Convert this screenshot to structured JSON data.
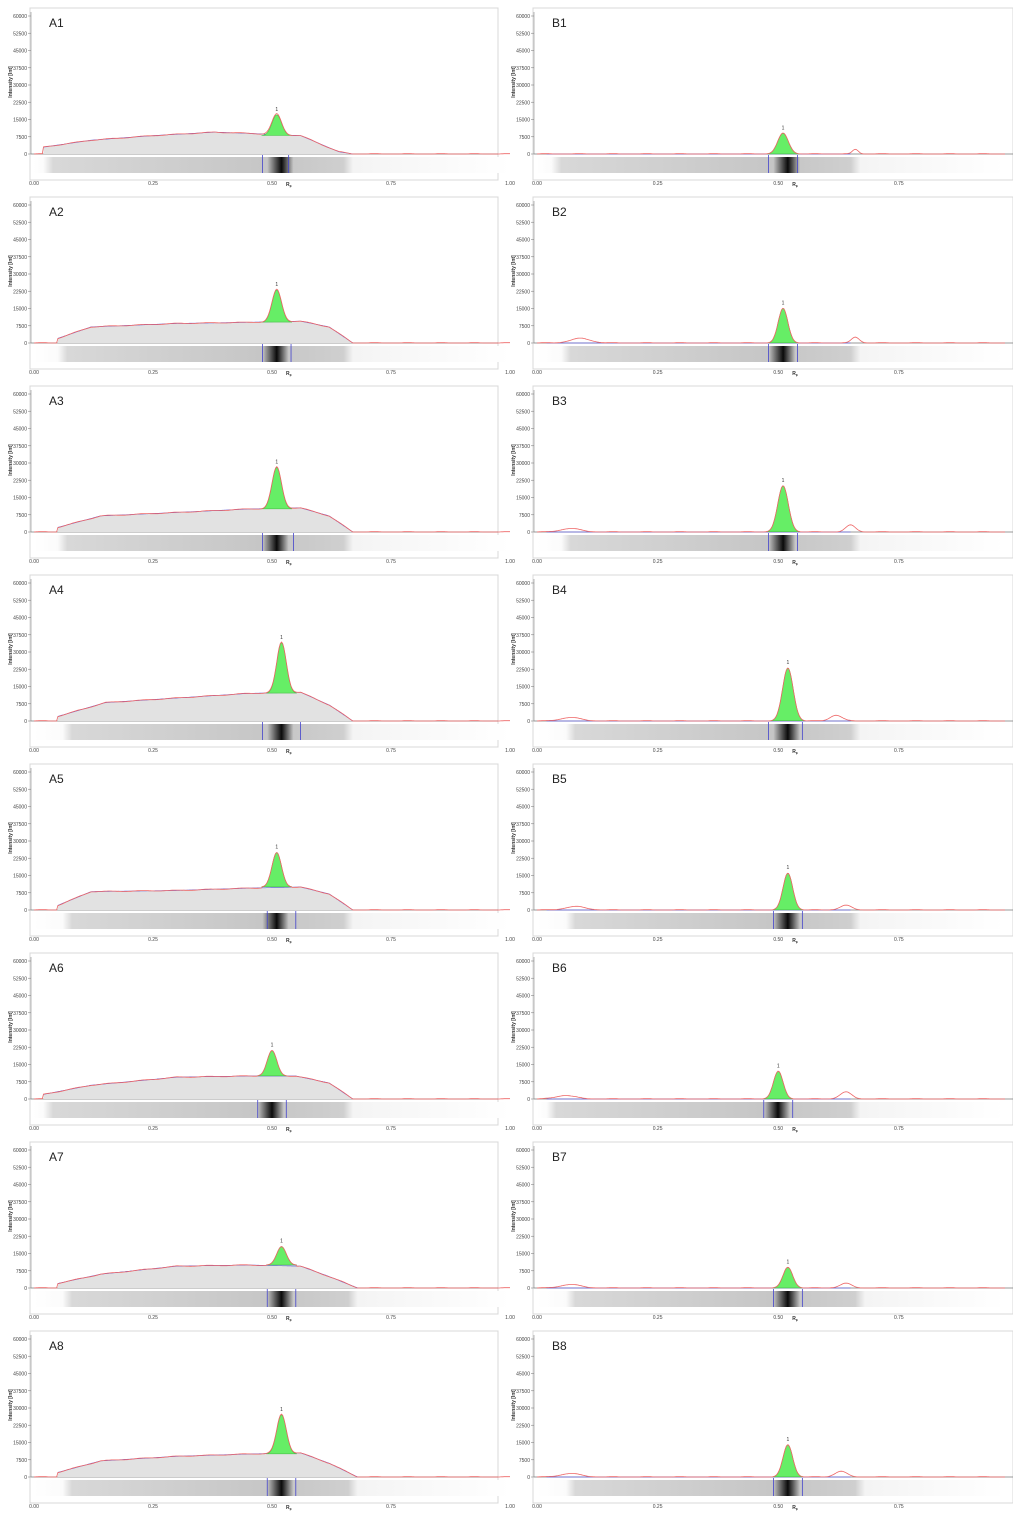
{
  "chart_data": [
    {
      "type": "area",
      "label": "A1",
      "peak": {
        "label": "1",
        "rf": 0.51,
        "height": 17000,
        "base": 8000,
        "sigma": 0.01
      },
      "background": [
        [
          0.02,
          3000
        ],
        [
          0.12,
          6000
        ],
        [
          0.25,
          8000
        ],
        [
          0.38,
          9500
        ],
        [
          0.45,
          9000
        ],
        [
          0.5,
          8500
        ],
        [
          0.56,
          8000
        ],
        [
          0.64,
          1000
        ],
        [
          0.67,
          0
        ]
      ],
      "bands": [
        0.48,
        0.535
      ],
      "strip": [
        0.02,
        0.67
      ],
      "dark": 0.52
    },
    {
      "type": "area",
      "label": "B1",
      "peak": {
        "label": "1",
        "rf": 0.51,
        "height": 9000,
        "base": 0,
        "sigma": 0.011
      },
      "background": [
        [
          0.02,
          0
        ],
        [
          0.65,
          0
        ]
      ],
      "bumps": [
        [
          0.66,
          2000,
          0.006
        ]
      ],
      "bands": [
        0.48,
        0.54
      ],
      "strip": [
        0.03,
        0.67
      ],
      "dark": 0.52
    },
    {
      "type": "area",
      "label": "A2",
      "peak": {
        "label": "1",
        "rf": 0.51,
        "height": 23000,
        "base": 9000,
        "sigma": 0.01
      },
      "background": [
        [
          0.05,
          2000
        ],
        [
          0.12,
          7000
        ],
        [
          0.3,
          8500
        ],
        [
          0.45,
          9000
        ],
        [
          0.56,
          9500
        ],
        [
          0.62,
          7000
        ],
        [
          0.67,
          0
        ]
      ],
      "bands": [
        0.48,
        0.54
      ],
      "strip": [
        0.05,
        0.67
      ],
      "dark": 0.51
    },
    {
      "type": "area",
      "label": "B2",
      "peak": {
        "label": "1",
        "rf": 0.51,
        "height": 15000,
        "base": 0,
        "sigma": 0.01
      },
      "background": [
        [
          0.02,
          0
        ],
        [
          0.65,
          0
        ]
      ],
      "bumps": [
        [
          0.09,
          2000,
          0.02
        ],
        [
          0.66,
          2500,
          0.008
        ]
      ],
      "bands": [
        0.48,
        0.54
      ],
      "strip": [
        0.05,
        0.67
      ],
      "dark": 0.51
    },
    {
      "type": "area",
      "label": "A3",
      "peak": {
        "label": "1",
        "rf": 0.51,
        "height": 28000,
        "base": 10000,
        "sigma": 0.01
      },
      "background": [
        [
          0.05,
          2000
        ],
        [
          0.14,
          7000
        ],
        [
          0.3,
          8500
        ],
        [
          0.45,
          10000
        ],
        [
          0.56,
          10500
        ],
        [
          0.62,
          7000
        ],
        [
          0.67,
          0
        ]
      ],
      "bands": [
        0.48,
        0.545
      ],
      "strip": [
        0.05,
        0.67
      ],
      "dark": 0.51
    },
    {
      "type": "area",
      "label": "B3",
      "peak": {
        "label": "1",
        "rf": 0.51,
        "height": 20000,
        "base": 0,
        "sigma": 0.011
      },
      "background": [
        [
          0.02,
          0
        ],
        [
          0.65,
          0
        ]
      ],
      "bumps": [
        [
          0.07,
          1500,
          0.02
        ],
        [
          0.65,
          3000,
          0.01
        ]
      ],
      "bands": [
        0.48,
        0.54
      ],
      "strip": [
        0.05,
        0.67
      ],
      "dark": 0.51
    },
    {
      "type": "area",
      "label": "A4",
      "peak": {
        "label": "1",
        "rf": 0.52,
        "height": 34000,
        "base": 12000,
        "sigma": 0.01
      },
      "background": [
        [
          0.05,
          2000
        ],
        [
          0.15,
          8000
        ],
        [
          0.3,
          10000
        ],
        [
          0.45,
          12000
        ],
        [
          0.56,
          12500
        ],
        [
          0.62,
          7000
        ],
        [
          0.67,
          0
        ]
      ],
      "bands": [
        0.48,
        0.56
      ],
      "strip": [
        0.06,
        0.67
      ],
      "dark": 0.52
    },
    {
      "type": "area",
      "label": "B4",
      "peak": {
        "label": "1",
        "rf": 0.52,
        "height": 23000,
        "base": 0,
        "sigma": 0.011
      },
      "background": [
        [
          0.02,
          0
        ],
        [
          0.65,
          0
        ]
      ],
      "bumps": [
        [
          0.07,
          1500,
          0.02
        ],
        [
          0.62,
          2500,
          0.012
        ]
      ],
      "bands": [
        0.48,
        0.55
      ],
      "strip": [
        0.06,
        0.67
      ],
      "dark": 0.52
    },
    {
      "type": "area",
      "label": "A5",
      "peak": {
        "label": "1",
        "rf": 0.51,
        "height": 25000,
        "base": 10000,
        "sigma": 0.01
      },
      "background": [
        [
          0.05,
          2000
        ],
        [
          0.12,
          8000
        ],
        [
          0.3,
          8500
        ],
        [
          0.45,
          9500
        ],
        [
          0.56,
          10000
        ],
        [
          0.62,
          7000
        ],
        [
          0.67,
          0
        ]
      ],
      "bands": [
        0.49,
        0.55
      ],
      "strip": [
        0.06,
        0.67
      ],
      "dark": 0.51
    },
    {
      "type": "area",
      "label": "B5",
      "peak": {
        "label": "1",
        "rf": 0.52,
        "height": 16000,
        "base": 0,
        "sigma": 0.01
      },
      "background": [
        [
          0.02,
          0
        ],
        [
          0.65,
          0
        ]
      ],
      "bumps": [
        [
          0.08,
          1500,
          0.02
        ],
        [
          0.64,
          2000,
          0.012
        ]
      ],
      "bands": [
        0.49,
        0.55
      ],
      "strip": [
        0.06,
        0.67
      ],
      "dark": 0.52
    },
    {
      "type": "area",
      "label": "A6",
      "peak": {
        "label": "1",
        "rf": 0.5,
        "height": 21000,
        "base": 10000,
        "sigma": 0.01
      },
      "background": [
        [
          0.02,
          2000
        ],
        [
          0.12,
          6000
        ],
        [
          0.3,
          9500
        ],
        [
          0.45,
          10000
        ],
        [
          0.55,
          10000
        ],
        [
          0.62,
          7000
        ],
        [
          0.67,
          0
        ]
      ],
      "bands": [
        0.47,
        0.53
      ],
      "strip": [
        0.02,
        0.67
      ],
      "dark": 0.5
    },
    {
      "type": "area",
      "label": "B6",
      "peak": {
        "label": "1",
        "rf": 0.5,
        "height": 12000,
        "base": 0,
        "sigma": 0.01
      },
      "background": [
        [
          0.02,
          0
        ],
        [
          0.65,
          0
        ]
      ],
      "bumps": [
        [
          0.06,
          1500,
          0.02
        ],
        [
          0.64,
          3000,
          0.012
        ]
      ],
      "bands": [
        0.47,
        0.53
      ],
      "strip": [
        0.02,
        0.67
      ],
      "dark": 0.5
    },
    {
      "type": "area",
      "label": "A7",
      "peak": {
        "label": "1",
        "rf": 0.52,
        "height": 18000,
        "base": 10000,
        "sigma": 0.01
      },
      "background": [
        [
          0.05,
          2000
        ],
        [
          0.14,
          6000
        ],
        [
          0.3,
          9500
        ],
        [
          0.45,
          10000
        ],
        [
          0.56,
          9500
        ],
        [
          0.62,
          5000
        ],
        [
          0.68,
          0
        ]
      ],
      "bands": [
        0.49,
        0.55
      ],
      "strip": [
        0.06,
        0.68
      ],
      "dark": 0.52
    },
    {
      "type": "area",
      "label": "B7",
      "peak": {
        "label": "1",
        "rf": 0.52,
        "height": 9000,
        "base": 0,
        "sigma": 0.01
      },
      "background": [
        [
          0.02,
          0
        ],
        [
          0.65,
          0
        ]
      ],
      "bumps": [
        [
          0.07,
          1500,
          0.02
        ],
        [
          0.64,
          2000,
          0.012
        ]
      ],
      "bands": [
        0.49,
        0.55
      ],
      "strip": [
        0.06,
        0.68
      ],
      "dark": 0.52
    },
    {
      "type": "area",
      "label": "A8",
      "peak": {
        "label": "1",
        "rf": 0.52,
        "height": 27000,
        "base": 10000,
        "sigma": 0.01
      },
      "background": [
        [
          0.05,
          2000
        ],
        [
          0.14,
          7000
        ],
        [
          0.3,
          9000
        ],
        [
          0.45,
          10000
        ],
        [
          0.56,
          10500
        ],
        [
          0.62,
          6000
        ],
        [
          0.68,
          0
        ]
      ],
      "bands": [
        0.49,
        0.55
      ],
      "strip": [
        0.06,
        0.68
      ],
      "dark": 0.52
    },
    {
      "type": "area",
      "label": "B8",
      "peak": {
        "label": "1",
        "rf": 0.52,
        "height": 14000,
        "base": 0,
        "sigma": 0.01
      },
      "background": [
        [
          0.02,
          0
        ],
        [
          0.65,
          0
        ]
      ],
      "bumps": [
        [
          0.07,
          1500,
          0.02
        ],
        [
          0.63,
          2500,
          0.012
        ]
      ],
      "bands": [
        0.49,
        0.55
      ],
      "strip": [
        0.06,
        0.68
      ],
      "dark": 0.52
    }
  ],
  "axes": {
    "ylabel": "Intensity [Int]",
    "yticks": [
      "60000",
      "52500",
      "45000",
      "37500",
      "30000",
      "22500",
      "15000",
      "7500",
      "0"
    ],
    "xticks_A": [
      "0.00",
      "0.25",
      "0.50",
      "0.75",
      "1.00"
    ],
    "xticks_B": [
      "0.00",
      "0.25",
      "0.50",
      "0.75"
    ],
    "rf_label": "R",
    "rf_sub": "F",
    "xlim": [
      0,
      1
    ],
    "ylim": [
      0,
      60000
    ]
  },
  "colors": {
    "peak": "#66ee66",
    "trace": "#ee6666",
    "baseline": "#6666dd",
    "background_fill": "#e2e2e2",
    "bands": "#4444cc"
  }
}
